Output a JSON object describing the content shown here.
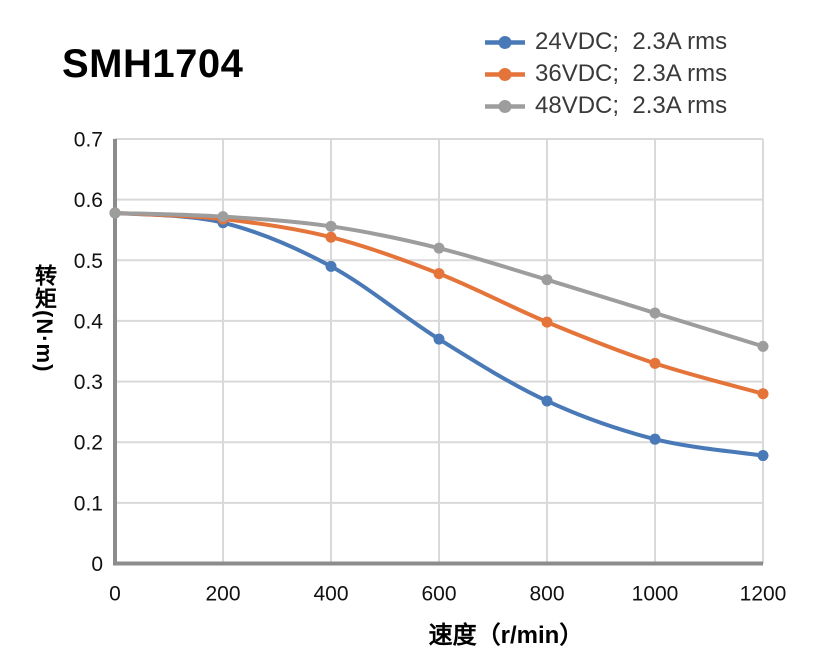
{
  "title": "SMH1704",
  "chart_data": {
    "type": "line",
    "title": "SMH1704",
    "x": [
      0,
      200,
      400,
      600,
      800,
      1000,
      1200
    ],
    "series": [
      {
        "name": "24VDC;  2.3A rms",
        "color": "#4979B6",
        "values": [
          0.578,
          0.562,
          0.49,
          0.37,
          0.268,
          0.205,
          0.178
        ]
      },
      {
        "name": "36VDC;  2.3A rms",
        "color": "#E4743A",
        "values": [
          0.578,
          0.568,
          0.538,
          0.478,
          0.398,
          0.33,
          0.28
        ]
      },
      {
        "name": "48VDC;  2.3A rms",
        "color": "#9D9D9D",
        "values": [
          0.578,
          0.572,
          0.556,
          0.52,
          0.468,
          0.413,
          0.358
        ]
      }
    ],
    "xlabel": "速度（r/min）",
    "ylabel": "转矩(N·m)",
    "xlim": [
      0,
      1200
    ],
    "ylim": [
      0,
      0.7
    ],
    "x_ticks": [
      "0",
      "200",
      "400",
      "600",
      "800",
      "1000",
      "1200"
    ],
    "y_ticks": [
      "0.7",
      "0.6",
      "0.5",
      "0.4",
      "0.3",
      "0.2",
      "0.1",
      "0"
    ],
    "grid": true,
    "smooth": true,
    "legend_position": "top-right"
  },
  "colors": {
    "gridline": "#D9D9D9",
    "axis": "#8C8C8C",
    "tick_text": "#111111",
    "legend_text": "#3A3A3A",
    "title_text": "#000000"
  }
}
